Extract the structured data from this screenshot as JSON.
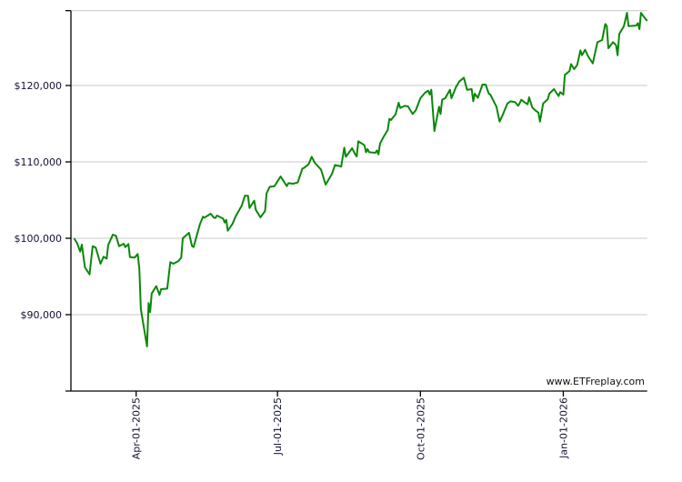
{
  "chart_data": {
    "type": "line",
    "title": "",
    "xlabel": "",
    "ylabel": "",
    "xlim": [
      "2025-02-18",
      "2026-02-24"
    ],
    "ylim": [
      80000,
      129800
    ],
    "grid": true,
    "y_ticks": [
      {
        "value": 90000,
        "label": "$90,000"
      },
      {
        "value": 100000,
        "label": "$100,000"
      },
      {
        "value": 110000,
        "label": "$110,000"
      },
      {
        "value": 120000,
        "label": "$120,000"
      },
      {
        "value": 129800,
        "label": ""
      }
    ],
    "x_ticks": [
      {
        "value": "2025-04-01",
        "label": "Apr-01-2025"
      },
      {
        "value": "2025-07-01",
        "label": "Jul-01-2025"
      },
      {
        "value": "2025-10-01",
        "label": "Oct-01-2025"
      },
      {
        "value": "2026-01-01",
        "label": "Jan-01-2026"
      }
    ],
    "watermark": "www.ETFreplay.com",
    "line_color": "#0a880a",
    "series": [
      {
        "points": [
          [
            "2025-02-20",
            100000
          ],
          [
            "2025-02-22",
            99370
          ],
          [
            "2025-02-24",
            98250
          ],
          [
            "2025-02-25",
            99170
          ],
          [
            "2025-02-27",
            96190
          ],
          [
            "2025-03-02",
            95270
          ],
          [
            "2025-03-04",
            98970
          ],
          [
            "2025-03-06",
            98770
          ],
          [
            "2025-03-09",
            96670
          ],
          [
            "2025-03-11",
            97580
          ],
          [
            "2025-03-13",
            97340
          ],
          [
            "2025-03-14",
            99130
          ],
          [
            "2025-03-17",
            100480
          ],
          [
            "2025-03-19",
            100320
          ],
          [
            "2025-03-21",
            98970
          ],
          [
            "2025-03-24",
            99290
          ],
          [
            "2025-03-25",
            98850
          ],
          [
            "2025-03-27",
            99250
          ],
          [
            "2025-03-28",
            97540
          ],
          [
            "2025-03-31",
            97460
          ],
          [
            "2025-04-02",
            97940
          ],
          [
            "2025-04-03",
            96070
          ],
          [
            "2025-04-04",
            90710
          ],
          [
            "2025-04-08",
            85830
          ],
          [
            "2025-04-09",
            91510
          ],
          [
            "2025-04-10",
            90320
          ],
          [
            "2025-04-11",
            92780
          ],
          [
            "2025-04-14",
            93730
          ],
          [
            "2025-04-16",
            92580
          ],
          [
            "2025-04-17",
            93330
          ],
          [
            "2025-04-21",
            93410
          ],
          [
            "2025-04-23",
            96870
          ],
          [
            "2025-04-25",
            96670
          ],
          [
            "2025-04-28",
            96990
          ],
          [
            "2025-04-30",
            97460
          ],
          [
            "2025-05-01",
            100000
          ],
          [
            "2025-05-05",
            100710
          ],
          [
            "2025-05-07",
            98970
          ],
          [
            "2025-05-08",
            98850
          ],
          [
            "2025-05-12",
            101820
          ],
          [
            "2025-05-14",
            102820
          ],
          [
            "2025-05-15",
            102700
          ],
          [
            "2025-05-19",
            103210
          ],
          [
            "2025-05-21",
            102700
          ],
          [
            "2025-05-22",
            102650
          ],
          [
            "2025-05-23",
            102980
          ],
          [
            "2025-05-27",
            102570
          ],
          [
            "2025-05-28",
            102060
          ],
          [
            "2025-05-29",
            102400
          ],
          [
            "2025-05-30",
            100990
          ],
          [
            "2025-06-02",
            101870
          ],
          [
            "2025-06-04",
            102860
          ],
          [
            "2025-06-08",
            104290
          ],
          [
            "2025-06-10",
            105560
          ],
          [
            "2025-06-12",
            105560
          ],
          [
            "2025-06-13",
            103970
          ],
          [
            "2025-06-16",
            104920
          ],
          [
            "2025-06-17",
            103730
          ],
          [
            "2025-06-20",
            102740
          ],
          [
            "2025-06-23",
            103570
          ],
          [
            "2025-06-24",
            105900
          ],
          [
            "2025-06-26",
            106740
          ],
          [
            "2025-06-29",
            106820
          ],
          [
            "2025-07-03",
            108090
          ],
          [
            "2025-07-07",
            106820
          ],
          [
            "2025-07-08",
            107220
          ],
          [
            "2025-07-11",
            107140
          ],
          [
            "2025-07-14",
            107300
          ],
          [
            "2025-07-17",
            109120
          ],
          [
            "2025-07-18",
            109200
          ],
          [
            "2025-07-21",
            109680
          ],
          [
            "2025-07-23",
            110670
          ],
          [
            "2025-07-25",
            109880
          ],
          [
            "2025-07-29",
            109000
          ],
          [
            "2025-08-01",
            107020
          ],
          [
            "2025-08-05",
            108410
          ],
          [
            "2025-08-07",
            109600
          ],
          [
            "2025-08-11",
            109400
          ],
          [
            "2025-08-13",
            111860
          ],
          [
            "2025-08-14",
            110670
          ],
          [
            "2025-08-18",
            111790
          ],
          [
            "2025-08-20",
            110990
          ],
          [
            "2025-08-21",
            110710
          ],
          [
            "2025-08-22",
            112690
          ],
          [
            "2025-08-26",
            112180
          ],
          [
            "2025-08-27",
            111260
          ],
          [
            "2025-08-28",
            111670
          ],
          [
            "2025-08-29",
            111260
          ],
          [
            "2025-09-02",
            111190
          ],
          [
            "2025-09-03",
            111500
          ],
          [
            "2025-09-04",
            110990
          ],
          [
            "2025-09-05",
            112380
          ],
          [
            "2025-09-07",
            113170
          ],
          [
            "2025-09-10",
            114170
          ],
          [
            "2025-09-11",
            115630
          ],
          [
            "2025-09-12",
            115480
          ],
          [
            "2025-09-15",
            116230
          ],
          [
            "2025-09-17",
            117740
          ],
          [
            "2025-09-18",
            117060
          ],
          [
            "2025-09-21",
            117330
          ],
          [
            "2025-09-23",
            117260
          ],
          [
            "2025-09-26",
            116260
          ],
          [
            "2025-09-28",
            116740
          ],
          [
            "2025-10-01",
            118330
          ],
          [
            "2025-10-04",
            119050
          ],
          [
            "2025-10-06",
            119320
          ],
          [
            "2025-10-07",
            118810
          ],
          [
            "2025-10-08",
            119440
          ],
          [
            "2025-10-10",
            114050
          ],
          [
            "2025-10-13",
            117220
          ],
          [
            "2025-10-14",
            116260
          ],
          [
            "2025-10-15",
            118130
          ],
          [
            "2025-10-17",
            118330
          ],
          [
            "2025-10-20",
            119440
          ],
          [
            "2025-10-21",
            118330
          ],
          [
            "2025-10-24",
            119830
          ],
          [
            "2025-10-26",
            120510
          ],
          [
            "2025-10-29",
            121020
          ],
          [
            "2025-10-31",
            119440
          ],
          [
            "2025-11-03",
            119520
          ],
          [
            "2025-11-04",
            117930
          ],
          [
            "2025-11-05",
            118930
          ],
          [
            "2025-11-07",
            118400
          ],
          [
            "2025-11-10",
            120120
          ],
          [
            "2025-11-12",
            120120
          ],
          [
            "2025-11-14",
            118930
          ],
          [
            "2025-11-15",
            118810
          ],
          [
            "2025-11-19",
            117220
          ],
          [
            "2025-11-21",
            115270
          ],
          [
            "2025-11-23",
            116140
          ],
          [
            "2025-11-26",
            117650
          ],
          [
            "2025-11-28",
            117930
          ],
          [
            "2025-12-01",
            117810
          ],
          [
            "2025-12-03",
            117330
          ],
          [
            "2025-12-05",
            118130
          ],
          [
            "2025-12-07",
            117810
          ],
          [
            "2025-12-09",
            117540
          ],
          [
            "2025-12-10",
            118450
          ],
          [
            "2025-12-12",
            117140
          ],
          [
            "2025-12-14",
            116740
          ],
          [
            "2025-12-16",
            116460
          ],
          [
            "2025-12-17",
            115270
          ],
          [
            "2025-12-19",
            117650
          ],
          [
            "2025-12-22",
            118210
          ],
          [
            "2025-12-23",
            118930
          ],
          [
            "2025-12-26",
            119520
          ],
          [
            "2025-12-29",
            118610
          ],
          [
            "2025-12-30",
            119130
          ],
          [
            "2026-01-01",
            118810
          ],
          [
            "2026-01-02",
            121400
          ],
          [
            "2026-01-05",
            121900
          ],
          [
            "2026-01-06",
            122800
          ],
          [
            "2026-01-08",
            122150
          ],
          [
            "2026-01-10",
            122700
          ],
          [
            "2026-01-12",
            124600
          ],
          [
            "2026-01-13",
            123970
          ],
          [
            "2026-01-15",
            124680
          ],
          [
            "2026-01-17",
            123810
          ],
          [
            "2026-01-20",
            122890
          ],
          [
            "2026-01-23",
            125670
          ],
          [
            "2026-01-26",
            125950
          ],
          [
            "2026-01-28",
            128050
          ],
          [
            "2026-01-29",
            127800
          ],
          [
            "2026-01-30",
            124880
          ],
          [
            "2026-02-02",
            125670
          ],
          [
            "2026-02-04",
            125280
          ],
          [
            "2026-02-05",
            123960
          ],
          [
            "2026-02-06",
            126740
          ],
          [
            "2026-02-09",
            127770
          ],
          [
            "2026-02-11",
            129520
          ],
          [
            "2026-02-12",
            127770
          ],
          [
            "2026-02-17",
            127850
          ],
          [
            "2026-02-18",
            128160
          ],
          [
            "2026-02-19",
            127380
          ],
          [
            "2026-02-20",
            129520
          ],
          [
            "2026-02-22",
            128960
          ],
          [
            "2026-02-24",
            128450
          ]
        ]
      }
    ]
  }
}
